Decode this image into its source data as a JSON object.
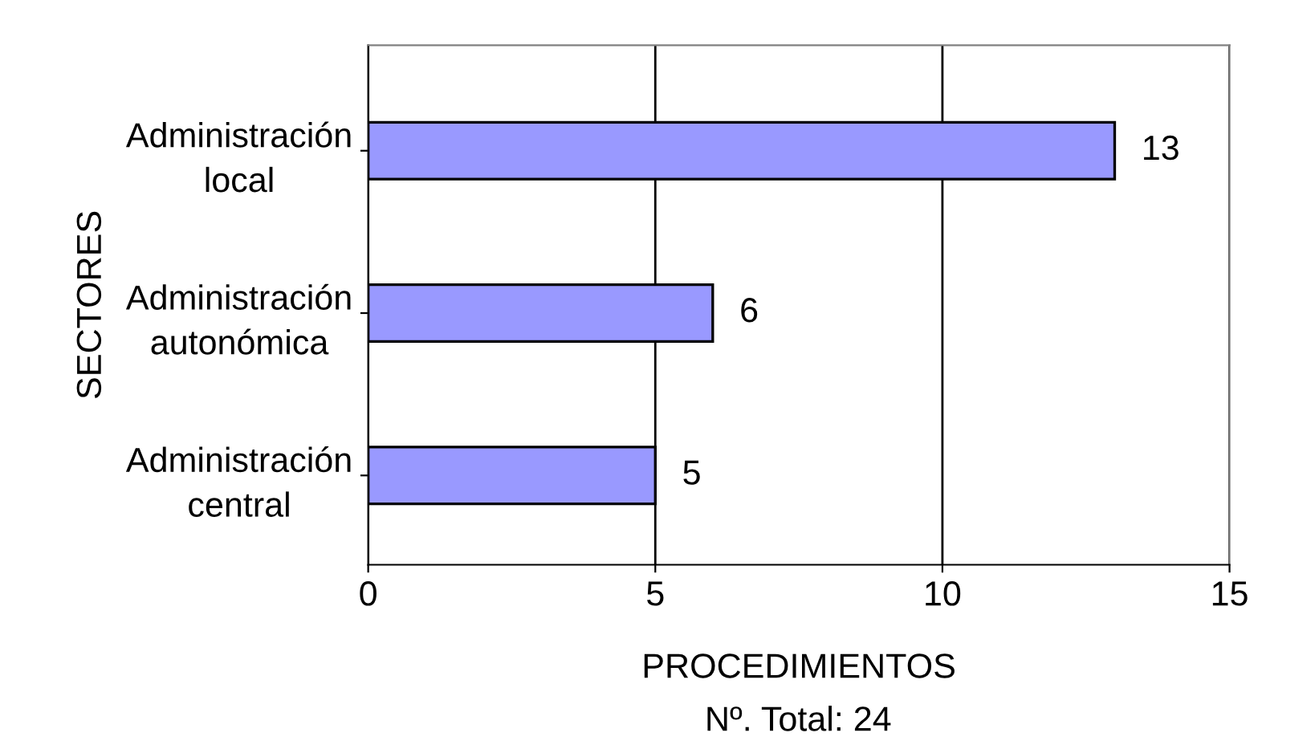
{
  "chart_data": {
    "type": "bar",
    "orientation": "horizontal",
    "categories": [
      "Administración\nlocal",
      "Administración\nautonómica",
      "Administración\ncentral"
    ],
    "values": [
      13,
      6,
      5
    ],
    "color": "#9999ff",
    "xlim": [
      0,
      15
    ],
    "xticks": [
      0,
      5,
      10,
      15
    ],
    "xlabel": "PROCEDIMIENTOS",
    "ylabel": "SECTORES",
    "annotations": [
      "Nº. Total: 24"
    ],
    "grid": "x",
    "data_labels": true
  }
}
